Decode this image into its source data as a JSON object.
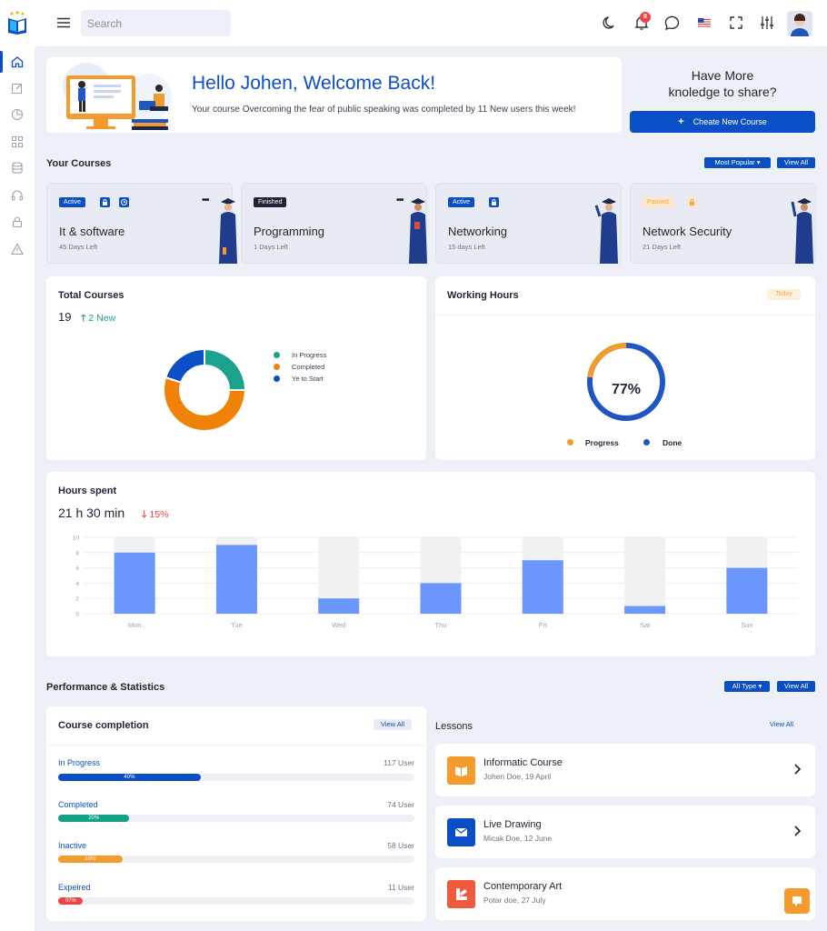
{
  "search": {
    "placeholder": "Search"
  },
  "notifications": {
    "count": "8"
  },
  "hero": {
    "title": "Hello Johen, Welcome Back!",
    "subtitle": "Your course Overcoming the fear of public speaking was completed by 11 New users this week!"
  },
  "share": {
    "line1": "Have More",
    "line2": "knoledge to share?",
    "button": "Cheate New Course"
  },
  "your_courses": {
    "title": "Your Courses",
    "filter": "Most Popular",
    "view_all": "View All",
    "items": [
      {
        "tag": "Active",
        "name": "It & software",
        "days": "45 Days Left"
      },
      {
        "tag": "Finished",
        "name": "Programming",
        "days": "1 Days Left"
      },
      {
        "tag": "Active",
        "name": "Networking",
        "days": "15 days Left"
      },
      {
        "tag": "Paused",
        "name": "Network Security",
        "days": "21 Days Left"
      }
    ]
  },
  "total_courses": {
    "title": "Total Courses",
    "count": "19",
    "new": "2 New",
    "legend": [
      "In Progress",
      "Completed",
      "Ye to Start"
    ],
    "values": [
      25,
      55,
      20
    ],
    "colors": [
      "#1aa28c",
      "#ef8207",
      "#0b4fc7"
    ]
  },
  "working_hours": {
    "title": "Working Hours",
    "tag": "Today",
    "percent": "77%",
    "percent_value": 77,
    "legend": [
      "Progress",
      "Done"
    ],
    "colors": [
      "#f59a2c",
      "#1f56c1"
    ]
  },
  "hours_spent": {
    "title": "Hours spent",
    "total": "21 h 30 min",
    "change": "15%"
  },
  "chart_data": {
    "type": "bar",
    "categories": [
      "Mon",
      "Tue",
      "Wed",
      "Thu",
      "Fri",
      "Sat",
      "Sun"
    ],
    "values": [
      8,
      9,
      2,
      4,
      7,
      1,
      6
    ],
    "ylim": [
      0,
      10
    ],
    "yticks": [
      "0",
      "2",
      "4",
      "6",
      "8",
      "10"
    ],
    "bar_color": "#6b96fb",
    "track_color": "#f0f1f3",
    "grid": true
  },
  "performance": {
    "title": "Performance & Statistics",
    "filter": "All Type",
    "view_all": "View All"
  },
  "completion": {
    "title": "Course completion",
    "view_all": "View All",
    "items": [
      {
        "label": "In Progress",
        "count": "117 User",
        "pct": "40%",
        "value": 40,
        "color": "#0b4fc7"
      },
      {
        "label": "Completed",
        "count": "74 User",
        "pct": "20%",
        "value": 20,
        "color": "#16a085"
      },
      {
        "label": "Inactive",
        "count": "58 User",
        "pct": "18%",
        "value": 18,
        "color": "#f59a2c"
      },
      {
        "label": "Expeired",
        "count": "11 User",
        "pct": "07%",
        "value": 7,
        "color": "#ef4444"
      }
    ]
  },
  "lessons": {
    "title": "Lessons",
    "view_all": "View All",
    "items": [
      {
        "title": "Informatic Course",
        "sub": "Johen Doe, 19 April"
      },
      {
        "title": "Live Drawing",
        "sub": "Micak Doe, 12 June"
      },
      {
        "title": "Contemporary Art",
        "sub": "Potar doe, 27 July"
      }
    ]
  }
}
